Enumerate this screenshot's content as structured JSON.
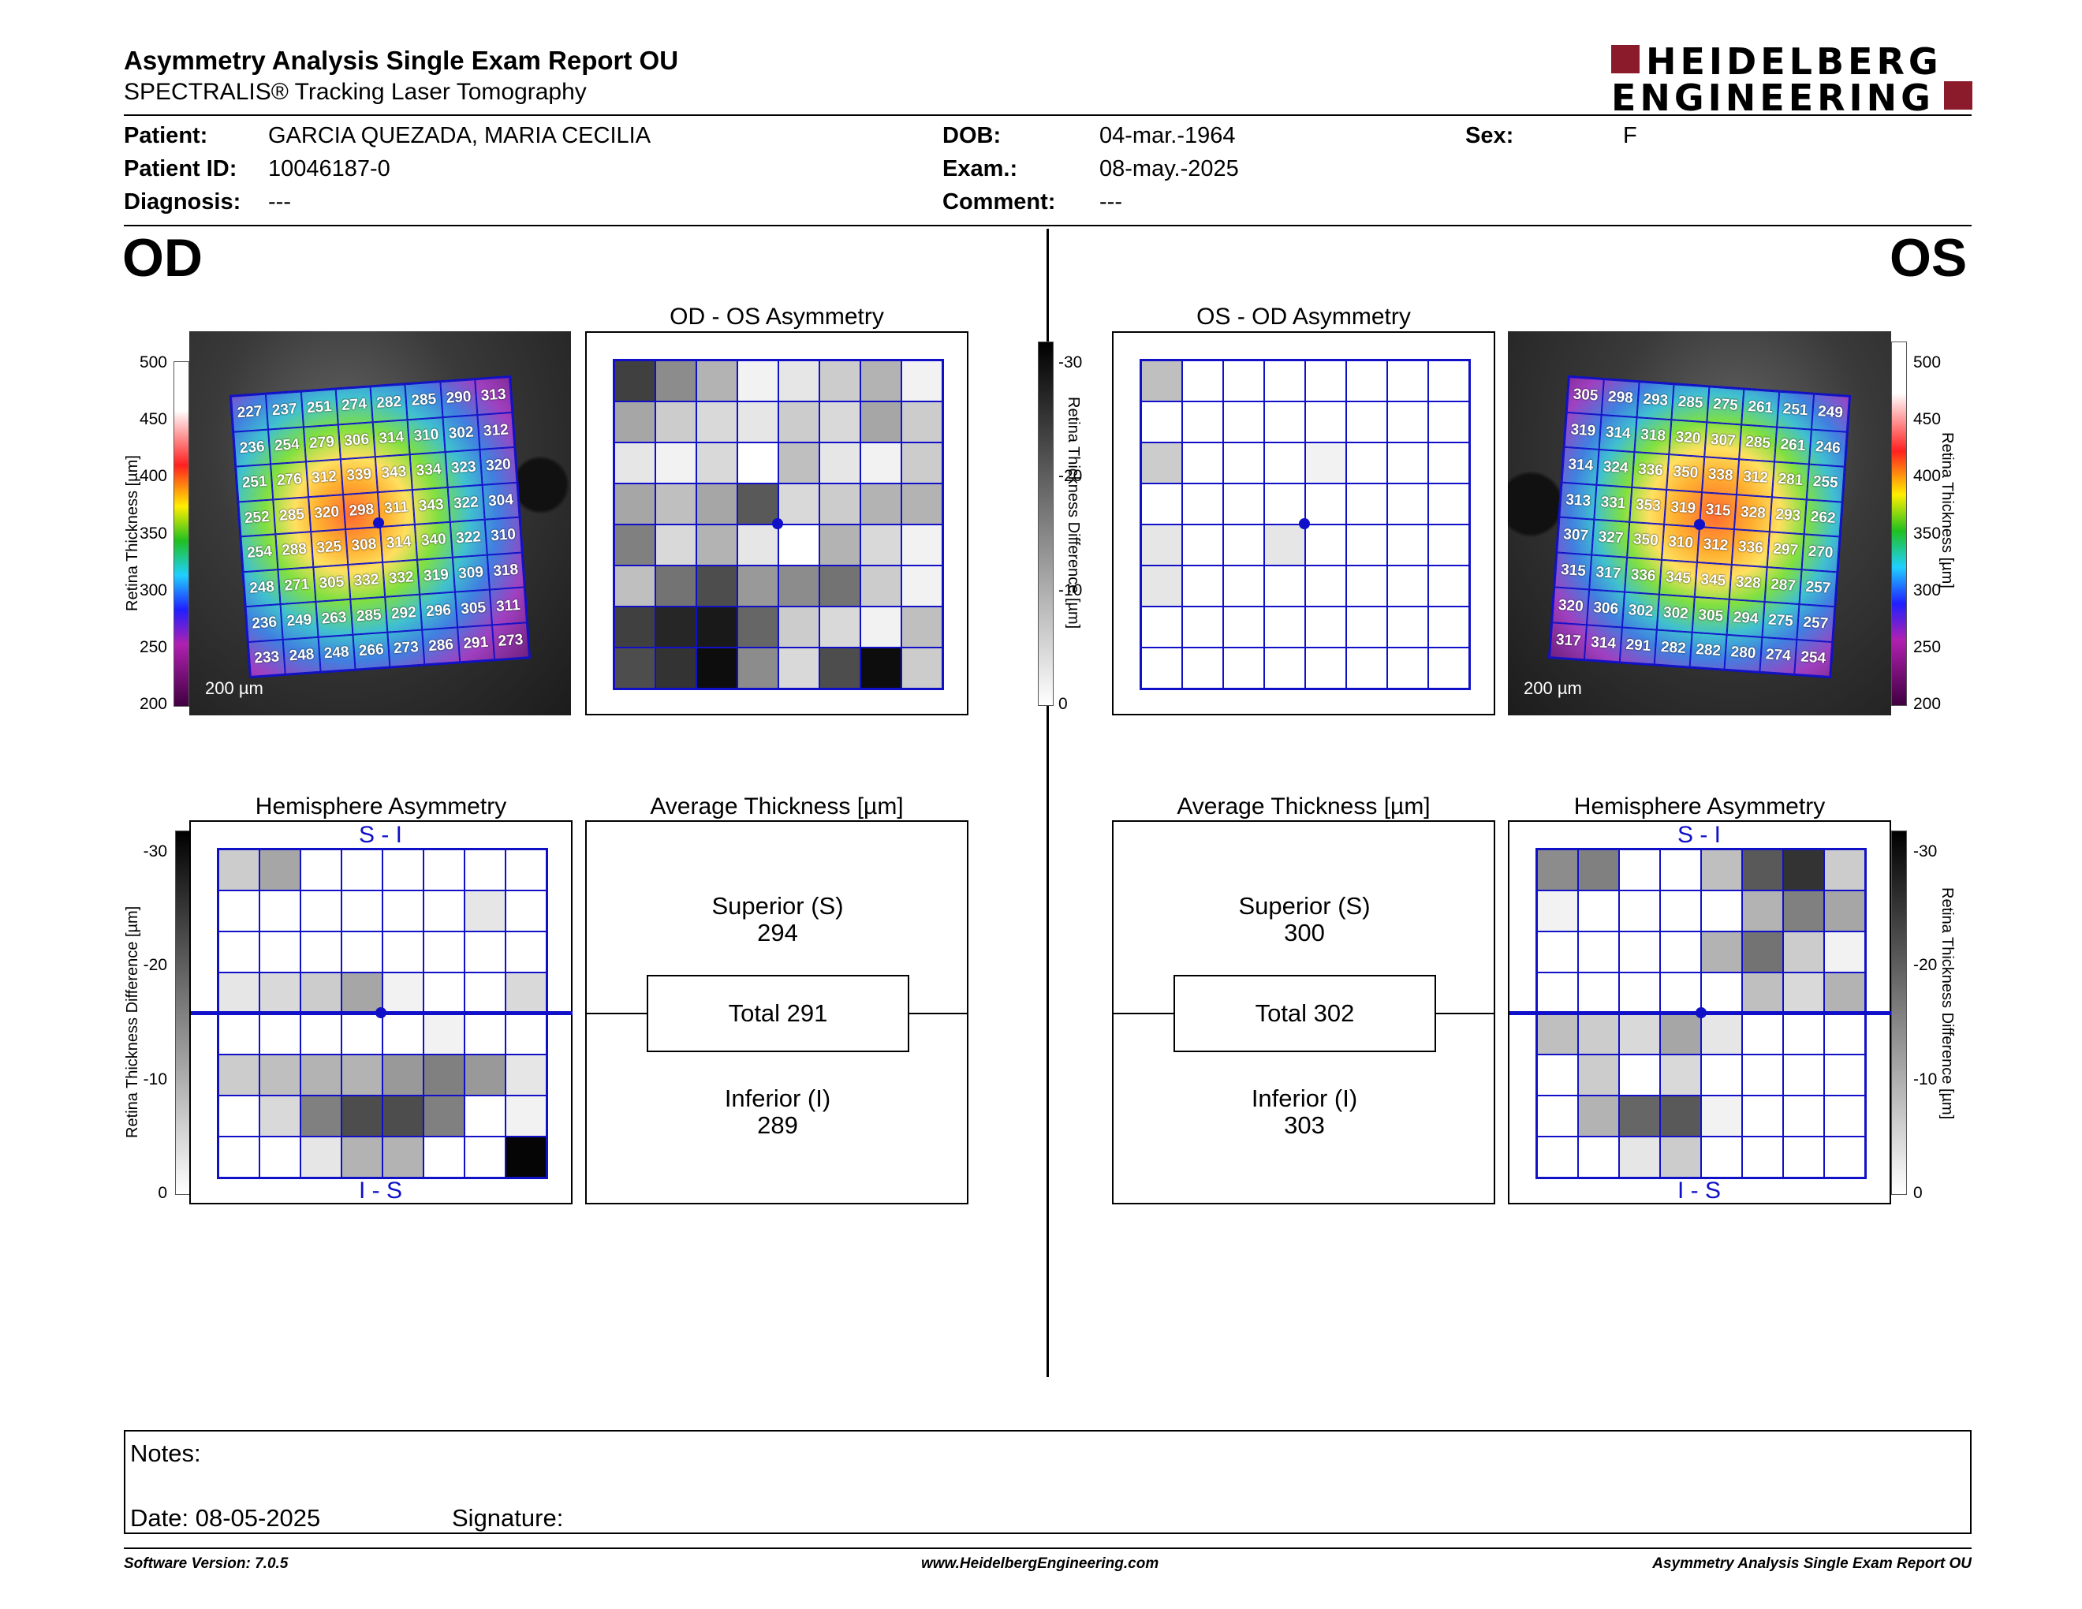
{
  "header": {
    "title": "Asymmetry Analysis Single Exam Report OU",
    "subtitle": "SPECTRALIS® Tracking Laser Tomography",
    "logo_line1": "HEIDELBERG",
    "logo_line2": "ENGINEERING"
  },
  "patient": {
    "patient_label": "Patient:",
    "patient": "GARCIA QUEZADA, MARIA CECILIA",
    "id_label": "Patient ID:",
    "id": "10046187-0",
    "diagnosis_label": "Diagnosis:",
    "diagnosis": "---",
    "dob_label": "DOB:",
    "dob": "04-mar.-1964",
    "exam_label": "Exam.:",
    "exam": "08-may.-2025",
    "comment_label": "Comment:",
    "comment": "---",
    "sex_label": "Sex:",
    "sex": "F"
  },
  "od": {
    "eye_label": "OD",
    "thickness_grid": [
      [
        227,
        237,
        251,
        274,
        282,
        285,
        290,
        313
      ],
      [
        236,
        254,
        279,
        306,
        314,
        310,
        302,
        312
      ],
      [
        251,
        276,
        312,
        339,
        343,
        334,
        323,
        320
      ],
      [
        252,
        285,
        320,
        298,
        311,
        343,
        322,
        304
      ],
      [
        254,
        288,
        325,
        308,
        314,
        340,
        322,
        310
      ],
      [
        248,
        271,
        305,
        332,
        332,
        319,
        309,
        318
      ],
      [
        236,
        249,
        263,
        285,
        292,
        296,
        305,
        311
      ],
      [
        233,
        248,
        248,
        266,
        273,
        286,
        291,
        273
      ]
    ],
    "scale_label": "200 µm",
    "asymmetry_title": "OD - OS Asymmetry",
    "asymmetry_shades": [
      [
        0.75,
        0.45,
        0.3,
        0.05,
        0.1,
        0.2,
        0.3,
        0.05
      ],
      [
        0.35,
        0.2,
        0.15,
        0.1,
        0.2,
        0.15,
        0.35,
        0.2
      ],
      [
        0.1,
        0.05,
        0.15,
        0.0,
        0.25,
        0.1,
        0.05,
        0.2
      ],
      [
        0.35,
        0.25,
        0.35,
        0.65,
        0.15,
        0.2,
        0.3,
        0.3
      ],
      [
        0.5,
        0.15,
        0.3,
        0.1,
        0.0,
        0.3,
        0.15,
        0.05
      ],
      [
        0.25,
        0.55,
        0.7,
        0.4,
        0.45,
        0.55,
        0.2,
        0.05
      ],
      [
        0.75,
        0.85,
        0.9,
        0.6,
        0.2,
        0.15,
        0.05,
        0.25
      ],
      [
        0.7,
        0.8,
        0.95,
        0.45,
        0.15,
        0.7,
        0.95,
        0.2
      ]
    ],
    "hemi_title": "Hemisphere Asymmetry",
    "hemi_top": "S - I",
    "hemi_bottom": "I - S",
    "hemi_shades": [
      [
        0.2,
        0.35,
        0,
        0,
        0,
        0,
        0,
        0
      ],
      [
        0,
        0,
        0,
        0,
        0,
        0,
        0.1,
        0
      ],
      [
        0,
        0,
        0,
        0,
        0,
        0,
        0,
        0
      ],
      [
        0.1,
        0.15,
        0.2,
        0.35,
        0.05,
        0,
        0,
        0.15
      ],
      [
        0,
        0,
        0,
        0,
        0,
        0.05,
        0,
        0
      ],
      [
        0.2,
        0.25,
        0.3,
        0.3,
        0.4,
        0.5,
        0.4,
        0.1
      ],
      [
        0,
        0.15,
        0.5,
        0.7,
        0.7,
        0.5,
        0,
        0.05
      ],
      [
        0,
        0,
        0.1,
        0.3,
        0.3,
        0,
        0,
        0.98
      ]
    ],
    "avg_title": "Average Thickness [µm]",
    "superior_label": "Superior (S)",
    "superior": "294",
    "total": "Total 291",
    "inferior_label": "Inferior (I)",
    "inferior": "289"
  },
  "os": {
    "eye_label": "OS",
    "thickness_grid": [
      [
        305,
        298,
        293,
        285,
        275,
        261,
        251,
        249
      ],
      [
        319,
        314,
        318,
        320,
        307,
        285,
        261,
        246
      ],
      [
        314,
        324,
        336,
        350,
        338,
        312,
        281,
        255
      ],
      [
        313,
        331,
        353,
        319,
        315,
        328,
        293,
        262
      ],
      [
        307,
        327,
        350,
        310,
        312,
        336,
        297,
        270
      ],
      [
        315,
        317,
        336,
        345,
        345,
        328,
        287,
        257
      ],
      [
        320,
        306,
        302,
        302,
        305,
        294,
        275,
        257
      ],
      [
        317,
        314,
        291,
        282,
        282,
        280,
        274,
        254
      ]
    ],
    "scale_label": "200 µm",
    "asymmetry_title": "OS - OD Asymmetry",
    "asymmetry_shades": [
      [
        0.25,
        0,
        0,
        0,
        0,
        0,
        0,
        0
      ],
      [
        0,
        0,
        0,
        0,
        0,
        0,
        0,
        0
      ],
      [
        0.2,
        0,
        0,
        0,
        0.05,
        0,
        0,
        0
      ],
      [
        0,
        0,
        0,
        0,
        0,
        0,
        0,
        0
      ],
      [
        0.1,
        0,
        0,
        0.1,
        0,
        0,
        0,
        0
      ],
      [
        0.1,
        0,
        0,
        0,
        0,
        0,
        0,
        0
      ],
      [
        0,
        0,
        0,
        0,
        0,
        0,
        0,
        0
      ],
      [
        0,
        0,
        0,
        0,
        0,
        0,
        0,
        0
      ]
    ],
    "hemi_title": "Hemisphere Asymmetry",
    "hemi_top": "S - I",
    "hemi_bottom": "I - S",
    "hemi_shades": [
      [
        0.45,
        0.5,
        0,
        0,
        0.25,
        0.65,
        0.8,
        0.2
      ],
      [
        0.05,
        0,
        0,
        0,
        0,
        0.3,
        0.5,
        0.35
      ],
      [
        0,
        0,
        0,
        0,
        0.3,
        0.55,
        0.2,
        0.05
      ],
      [
        0,
        0,
        0,
        0,
        0,
        0.25,
        0.15,
        0.3
      ],
      [
        0.25,
        0.2,
        0.15,
        0.35,
        0.1,
        0,
        0,
        0
      ],
      [
        0,
        0.2,
        0,
        0.15,
        0,
        0,
        0,
        0
      ],
      [
        0,
        0.3,
        0.6,
        0.65,
        0.05,
        0,
        0,
        0
      ],
      [
        0,
        0,
        0.1,
        0.2,
        0,
        0,
        0,
        0
      ]
    ],
    "avg_title": "Average Thickness [µm]",
    "superior_label": "Superior (S)",
    "superior": "300",
    "total": "Total 302",
    "inferior_label": "Inferior (I)",
    "inferior": "303"
  },
  "scales": {
    "thickness_ticks": [
      "500",
      "450",
      "400",
      "350",
      "300",
      "250",
      "200"
    ],
    "thickness_label": "Retina Thickness [µm]",
    "diff_ticks": [
      "-30",
      "-20",
      "-10",
      "0"
    ],
    "diff_label": "Retina Thickness Difference [µm]"
  },
  "notes": {
    "notes_label": "Notes:",
    "date_label": "Date: 08-05-2025",
    "signature_label": "Signature:"
  },
  "footer": {
    "left": "Software Version: 7.0.5",
    "center": "www.HeidelbergEngineering.com",
    "right": "Asymmetry Analysis Single Exam Report OU"
  },
  "colors": {
    "grid_blue": "#1010c8",
    "logo_red": "#8b1a2b"
  }
}
